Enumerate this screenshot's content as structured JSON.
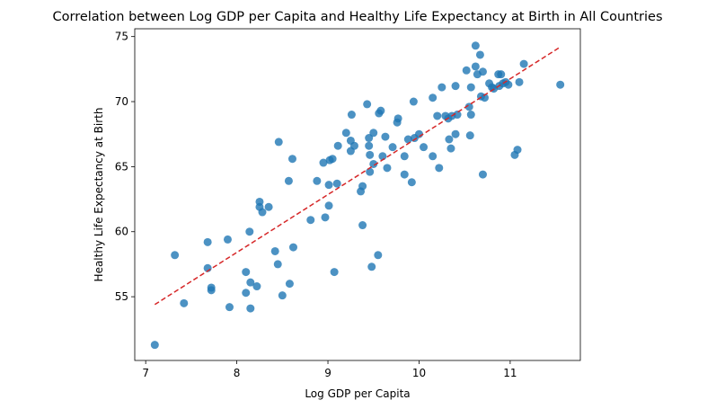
{
  "chart_data": {
    "type": "scatter",
    "title": "Correlation between Log GDP per Capita and Healthy Life Expectancy at Birth in All Countries",
    "xlabel": "Log GDP per Capita",
    "ylabel": "Healthy Life Expectancy at Birth",
    "xlim": [
      6.88,
      11.77
    ],
    "ylim": [
      50.1,
      75.6
    ],
    "xticks": [
      7,
      8,
      9,
      10,
      11
    ],
    "yticks": [
      55,
      60,
      65,
      70,
      75
    ],
    "grid": false,
    "point_color": "#1f77b4",
    "trend_color": "#d62728",
    "trendline": {
      "x": [
        7.1,
        11.55
      ],
      "y": [
        54.4,
        74.2
      ]
    },
    "points": [
      [
        7.1,
        51.3
      ],
      [
        7.32,
        58.2
      ],
      [
        7.42,
        54.5
      ],
      [
        7.68,
        59.2
      ],
      [
        7.68,
        57.2
      ],
      [
        7.72,
        55.5
      ],
      [
        7.72,
        55.7
      ],
      [
        7.9,
        59.4
      ],
      [
        7.92,
        54.2
      ],
      [
        8.1,
        56.9
      ],
      [
        8.1,
        55.3
      ],
      [
        8.14,
        60.0
      ],
      [
        8.15,
        56.1
      ],
      [
        8.15,
        54.1
      ],
      [
        8.22,
        55.8
      ],
      [
        8.25,
        62.3
      ],
      [
        8.25,
        61.9
      ],
      [
        8.28,
        61.5
      ],
      [
        8.35,
        61.9
      ],
      [
        8.42,
        58.5
      ],
      [
        8.45,
        57.5
      ],
      [
        8.46,
        66.9
      ],
      [
        8.5,
        55.1
      ],
      [
        8.57,
        63.9
      ],
      [
        8.58,
        56.0
      ],
      [
        8.61,
        65.6
      ],
      [
        8.62,
        58.8
      ],
      [
        8.81,
        60.9
      ],
      [
        8.88,
        63.9
      ],
      [
        8.95,
        65.3
      ],
      [
        8.97,
        61.1
      ],
      [
        9.02,
        65.5
      ],
      [
        9.01,
        62.0
      ],
      [
        9.01,
        63.6
      ],
      [
        9.05,
        65.6
      ],
      [
        9.07,
        56.9
      ],
      [
        9.1,
        63.7
      ],
      [
        9.11,
        66.6
      ],
      [
        9.2,
        67.6
      ],
      [
        9.25,
        66.2
      ],
      [
        9.25,
        67.0
      ],
      [
        9.26,
        69.0
      ],
      [
        9.29,
        66.6
      ],
      [
        9.36,
        63.1
      ],
      [
        9.38,
        63.5
      ],
      [
        9.38,
        60.5
      ],
      [
        9.43,
        69.8
      ],
      [
        9.45,
        67.2
      ],
      [
        9.45,
        66.6
      ],
      [
        9.46,
        65.9
      ],
      [
        9.46,
        64.6
      ],
      [
        9.48,
        57.3
      ],
      [
        9.5,
        67.6
      ],
      [
        9.5,
        65.2
      ],
      [
        9.55,
        58.2
      ],
      [
        9.56,
        69.1
      ],
      [
        9.58,
        69.3
      ],
      [
        9.6,
        65.8
      ],
      [
        9.63,
        67.3
      ],
      [
        9.65,
        64.9
      ],
      [
        9.71,
        66.5
      ],
      [
        9.76,
        68.4
      ],
      [
        9.77,
        68.7
      ],
      [
        9.84,
        65.8
      ],
      [
        9.84,
        64.4
      ],
      [
        9.88,
        67.1
      ],
      [
        9.92,
        63.8
      ],
      [
        9.94,
        70.0
      ],
      [
        9.95,
        67.2
      ],
      [
        10.0,
        67.5
      ],
      [
        10.05,
        66.5
      ],
      [
        10.15,
        70.3
      ],
      [
        10.15,
        65.8
      ],
      [
        10.2,
        68.9
      ],
      [
        10.22,
        64.9
      ],
      [
        10.25,
        71.1
      ],
      [
        10.29,
        68.9
      ],
      [
        10.32,
        68.7
      ],
      [
        10.33,
        67.1
      ],
      [
        10.35,
        66.4
      ],
      [
        10.36,
        68.9
      ],
      [
        10.4,
        71.2
      ],
      [
        10.4,
        67.5
      ],
      [
        10.42,
        69.0
      ],
      [
        10.52,
        72.4
      ],
      [
        10.55,
        69.6
      ],
      [
        10.56,
        67.4
      ],
      [
        10.57,
        71.1
      ],
      [
        10.57,
        69.0
      ],
      [
        10.62,
        74.3
      ],
      [
        10.62,
        72.7
      ],
      [
        10.64,
        72.1
      ],
      [
        10.67,
        73.6
      ],
      [
        10.68,
        70.4
      ],
      [
        10.7,
        72.3
      ],
      [
        10.7,
        64.4
      ],
      [
        10.72,
        70.3
      ],
      [
        10.77,
        71.4
      ],
      [
        10.8,
        71.1
      ],
      [
        10.82,
        71.0
      ],
      [
        10.87,
        72.1
      ],
      [
        10.88,
        71.2
      ],
      [
        10.9,
        72.1
      ],
      [
        10.92,
        71.4
      ],
      [
        10.95,
        71.5
      ],
      [
        10.98,
        71.3
      ],
      [
        11.05,
        65.9
      ],
      [
        11.08,
        66.3
      ],
      [
        11.1,
        71.5
      ],
      [
        11.15,
        72.9
      ],
      [
        11.55,
        71.3
      ]
    ]
  }
}
